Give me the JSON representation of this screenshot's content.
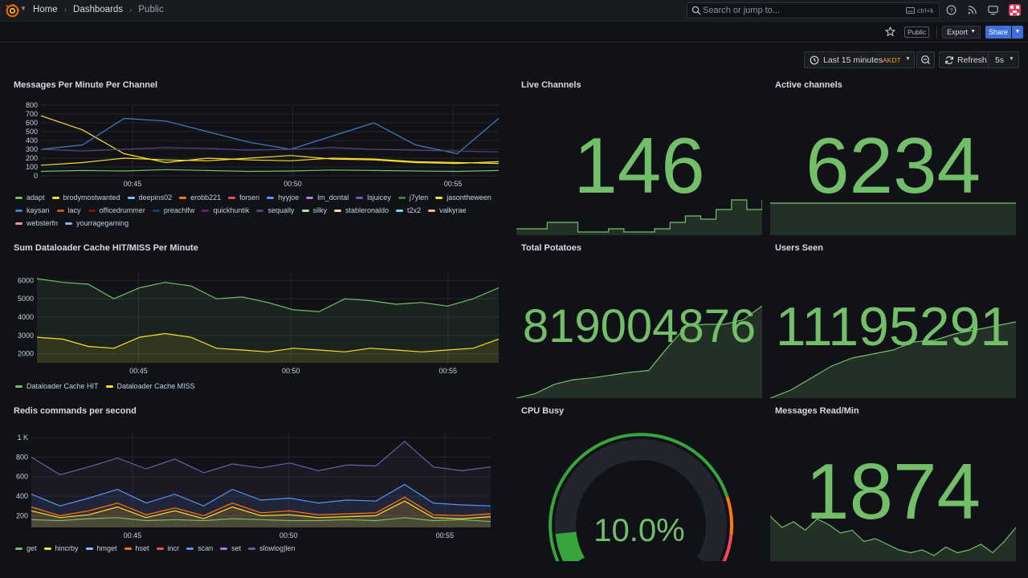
{
  "nav": {
    "breadcrumbs": [
      "Home",
      "Dashboards",
      "Public"
    ],
    "search_placeholder": "Search or jump to...",
    "search_shortcut": "ctrl+k"
  },
  "toolbar": {
    "public_badge": "Public",
    "export_label": "Export",
    "share_label": "Share"
  },
  "time": {
    "range_label": "Last 15 minutes",
    "timezone": "AKDT",
    "refresh_label": "Refresh",
    "interval": "5s"
  },
  "colors": {
    "green": "#73bf69",
    "yellow": "#fade2a",
    "background": "#111217",
    "panel_text": "#d8d9e0"
  },
  "panels": {
    "messages_per_minute": {
      "title": "Messages Per Minute Per Channel",
      "legend": [
        {
          "name": "adapt",
          "color": "#73bf69"
        },
        {
          "name": "brodymostwanted",
          "color": "#fade2a"
        },
        {
          "name": "deepins02",
          "color": "#8ab8ff"
        },
        {
          "name": "erobb221",
          "color": "#ff780a"
        },
        {
          "name": "forsen",
          "color": "#f2495c"
        },
        {
          "name": "hyyjoe",
          "color": "#5794f2"
        },
        {
          "name": "lm_dontal",
          "color": "#b877d9"
        },
        {
          "name": "lsjuicey",
          "color": "#705da0"
        },
        {
          "name": "j7ylen",
          "color": "#37872d"
        },
        {
          "name": "jasontheween",
          "color": "#fade2a"
        },
        {
          "name": "kaysan",
          "color": "#447ebc"
        },
        {
          "name": "lacy",
          "color": "#c15c17"
        },
        {
          "name": "officedrummer",
          "color": "#890f02"
        },
        {
          "name": "preachlfw",
          "color": "#0a437c"
        },
        {
          "name": "quickhuntik",
          "color": "#6d1f62"
        },
        {
          "name": "sequally",
          "color": "#584477"
        },
        {
          "name": "silky",
          "color": "#b7dbab"
        },
        {
          "name": "stableronaldo",
          "color": "#f4d598"
        },
        {
          "name": "t2x2",
          "color": "#70dbed"
        },
        {
          "name": "valkyrae",
          "color": "#f9ba8f"
        },
        {
          "name": "websterfn",
          "color": "#f29191"
        },
        {
          "name": "yourragegaming",
          "color": "#82b5d8"
        }
      ]
    },
    "dataloader": {
      "title": "Sum Dataloader Cache HIT/MISS Per Minute",
      "legend": [
        {
          "name": "Dataloader Cache HIT",
          "color": "#73bf69"
        },
        {
          "name": "Dataloader Cache MISS",
          "color": "#fade2a"
        }
      ]
    },
    "redis": {
      "title": "Redis commands per second",
      "legend": [
        {
          "name": "get",
          "color": "#73bf69"
        },
        {
          "name": "hincrby",
          "color": "#fade2a"
        },
        {
          "name": "hmget",
          "color": "#8ab8ff"
        },
        {
          "name": "hset",
          "color": "#ff780a"
        },
        {
          "name": "incr",
          "color": "#f2495c"
        },
        {
          "name": "scan",
          "color": "#5794f2"
        },
        {
          "name": "set",
          "color": "#b877d9"
        },
        {
          "name": "slowlog|len",
          "color": "#705da0"
        }
      ]
    },
    "live_channels": {
      "title": "Live Channels",
      "value": "146"
    },
    "active_channels": {
      "title": "Active channels",
      "value": "6234"
    },
    "total_potatoes": {
      "title": "Total Potatoes",
      "value": "819004876"
    },
    "users_seen": {
      "title": "Users Seen",
      "value": "11195291"
    },
    "cpu_busy": {
      "title": "CPU Busy",
      "value": "10.0%",
      "percent": 10.0
    },
    "messages_read": {
      "title": "Messages Read/Min",
      "value": "1874"
    }
  },
  "chart_data": [
    {
      "type": "line",
      "title": "Messages Per Minute Per Channel",
      "x_ticks": [
        "00:45",
        "00:50",
        "00:55"
      ],
      "y_ticks": [
        "0",
        "100",
        "200",
        "300",
        "400",
        "500",
        "600",
        "700",
        "800"
      ],
      "ylim": [
        0,
        800
      ],
      "series": [
        {
          "name": "adapt",
          "values": [
            50,
            60,
            55,
            70,
            60,
            50,
            55,
            65,
            60,
            55,
            50,
            60
          ]
        },
        {
          "name": "brodymostwanted",
          "values": [
            680,
            520,
            250,
            150,
            200,
            180,
            170,
            200,
            190,
            160,
            150,
            140
          ]
        },
        {
          "name": "kaysan",
          "values": [
            300,
            350,
            650,
            620,
            500,
            380,
            300,
            450,
            600,
            350,
            250,
            650
          ]
        },
        {
          "name": "sequally",
          "values": [
            300,
            280,
            300,
            320,
            310,
            290,
            300,
            320,
            300,
            290,
            280,
            270
          ]
        },
        {
          "name": "jasontheween",
          "values": [
            120,
            150,
            200,
            180,
            170,
            200,
            230,
            190,
            180,
            150,
            140,
            160
          ]
        }
      ]
    },
    {
      "type": "area",
      "title": "Sum Dataloader Cache HIT/MISS Per Minute",
      "x_ticks": [
        "00:45",
        "00:50",
        "00:55"
      ],
      "y_ticks": [
        "2000",
        "3000",
        "4000",
        "5000",
        "6000"
      ],
      "ylim": [
        1500,
        6500
      ],
      "series": [
        {
          "name": "Dataloader Cache HIT",
          "values": [
            6100,
            5900,
            5800,
            5000,
            5600,
            5900,
            5700,
            5000,
            5100,
            4800,
            4400,
            4300,
            5000,
            4900,
            4700,
            4800,
            4600,
            5000,
            5600
          ]
        },
        {
          "name": "Dataloader Cache MISS",
          "values": [
            2900,
            2800,
            2400,
            2300,
            2900,
            3100,
            2900,
            2300,
            2200,
            2100,
            2300,
            2200,
            2100,
            2300,
            2200,
            2100,
            2200,
            2300,
            2800
          ]
        }
      ]
    },
    {
      "type": "area",
      "title": "Redis commands per second",
      "x_ticks": [
        "00:45",
        "00:50",
        "00:55"
      ],
      "y_ticks": [
        "200",
        "400",
        "600",
        "800",
        "1 K"
      ],
      "ylim": [
        80,
        1050
      ],
      "series": [
        {
          "name": "slowlog|len",
          "values": [
            800,
            620,
            700,
            790,
            680,
            780,
            640,
            730,
            690,
            740,
            660,
            720,
            710,
            960,
            700,
            660,
            700
          ]
        },
        {
          "name": "scan",
          "values": [
            420,
            300,
            380,
            470,
            330,
            420,
            300,
            470,
            360,
            380,
            330,
            360,
            350,
            520,
            330,
            310,
            300
          ]
        },
        {
          "name": "hset",
          "values": [
            290,
            200,
            250,
            330,
            210,
            280,
            200,
            330,
            230,
            250,
            210,
            220,
            230,
            390,
            210,
            200,
            220
          ]
        },
        {
          "name": "hincrby",
          "values": [
            250,
            180,
            210,
            290,
            180,
            250,
            170,
            290,
            200,
            210,
            180,
            190,
            200,
            350,
            180,
            170,
            190
          ]
        },
        {
          "name": "get",
          "values": [
            160,
            150,
            170,
            180,
            150,
            160,
            150,
            170,
            160,
            150,
            150,
            160,
            150,
            180,
            150,
            160,
            140
          ]
        }
      ]
    },
    {
      "type": "area",
      "title": "Live Channels",
      "values": [
        0.1,
        0.1,
        0.2,
        0.2,
        0.05,
        0.05,
        0.1,
        0.05,
        0.05,
        0.1,
        0.2,
        0.3,
        0.25,
        0.4,
        0.55,
        0.4,
        0.55
      ]
    },
    {
      "type": "area",
      "title": "Active channels",
      "values": [
        0.5,
        0.5,
        0.5,
        0.5,
        0.5,
        0.5,
        0.5,
        0.5
      ]
    },
    {
      "type": "area",
      "title": "Total Potatoes",
      "values": [
        0.0,
        0.05,
        0.15,
        0.2,
        0.22,
        0.25,
        0.28,
        0.3,
        0.55,
        0.78,
        0.8,
        0.8,
        0.85,
        1.0
      ]
    },
    {
      "type": "area",
      "title": "Users Seen",
      "values": [
        0.0,
        0.1,
        0.25,
        0.4,
        0.5,
        0.55,
        0.6,
        0.7,
        0.72,
        0.8,
        0.85,
        0.9,
        0.95
      ]
    },
    {
      "type": "area",
      "title": "Messages Read/Min",
      "values": [
        0.8,
        0.6,
        0.7,
        0.55,
        0.75,
        0.65,
        0.5,
        0.55,
        0.35,
        0.4,
        0.3,
        0.2,
        0.15,
        0.2,
        0.1,
        0.25,
        0.15,
        0.2,
        0.3,
        0.15,
        0.35,
        0.6
      ]
    }
  ]
}
